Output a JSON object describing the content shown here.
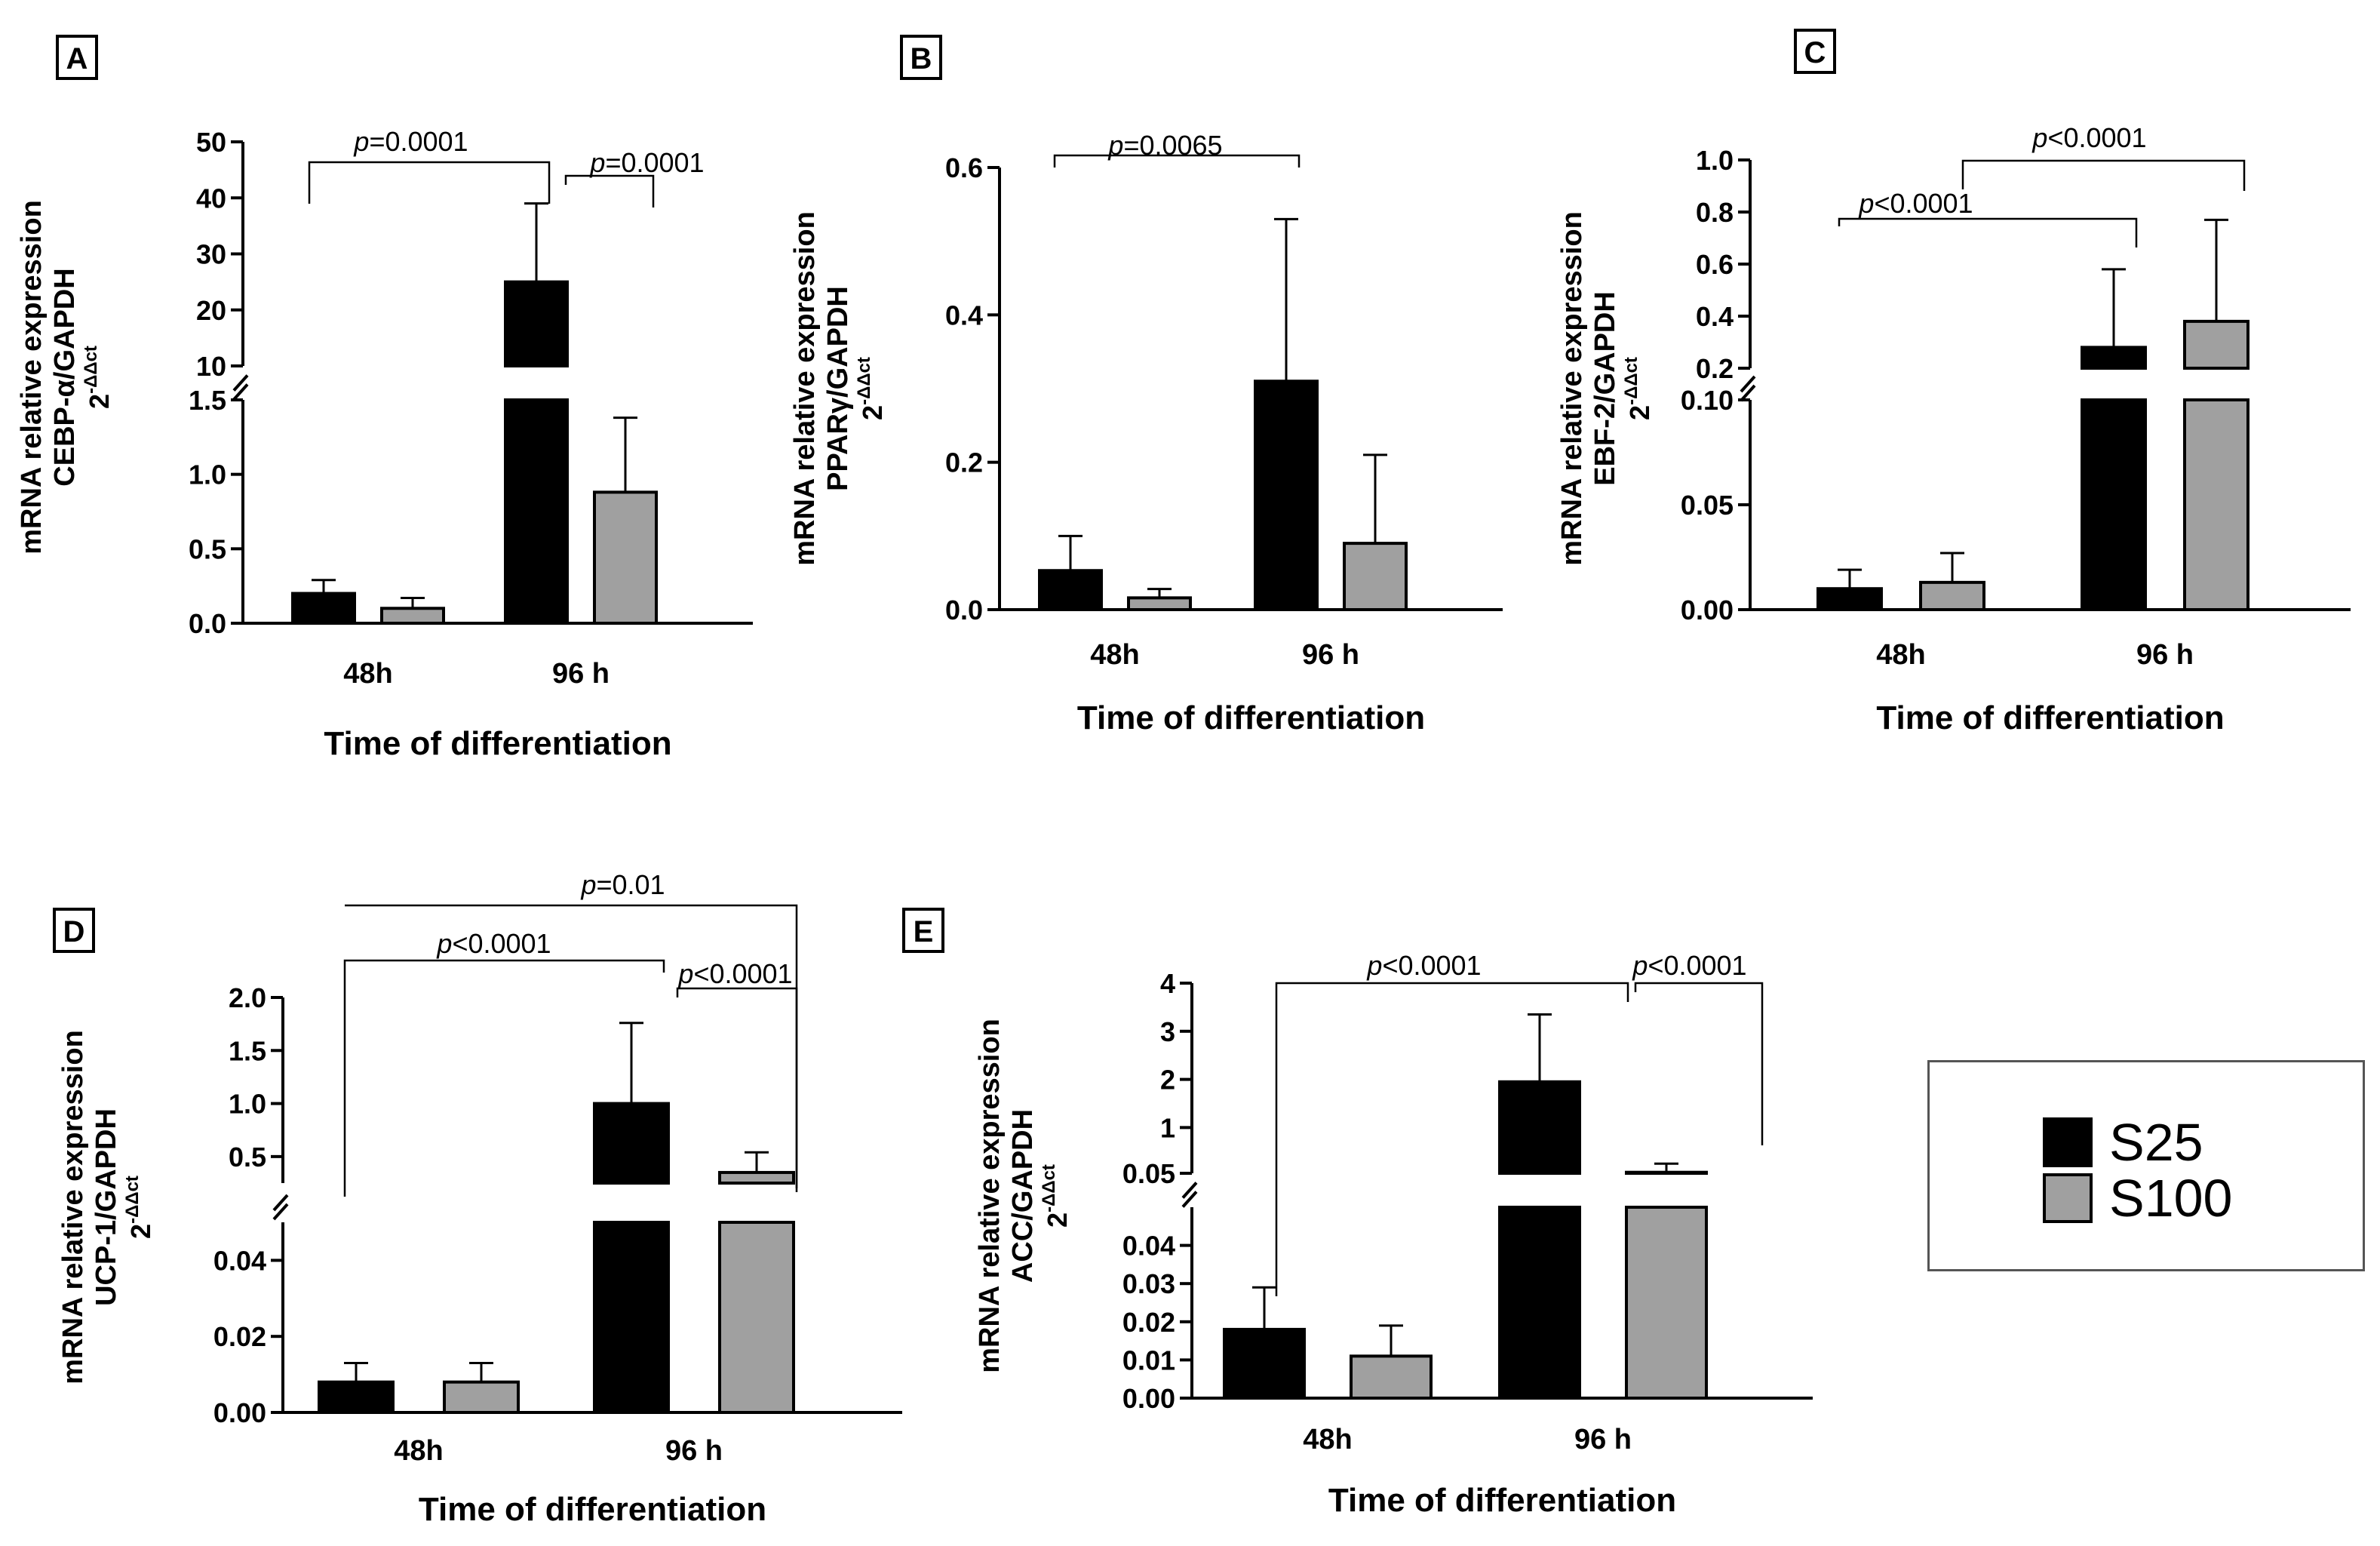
{
  "legend": {
    "items": [
      {
        "label": "S25",
        "color": "#000000"
      },
      {
        "label": "S100",
        "color": "#a0a0a0"
      }
    ]
  },
  "colors": {
    "s25": "#000000",
    "s100": "#a0a0a0",
    "line": "#000000"
  },
  "chart_data": [
    {
      "panel": "A",
      "type": "bar",
      "categories": [
        "48h",
        "96 h"
      ],
      "series": [
        {
          "name": "S25",
          "values": [
            0.2,
            25
          ],
          "errors": [
            0.09,
            14
          ]
        },
        {
          "name": "S100",
          "values": [
            0.1,
            0.88
          ],
          "errors": [
            0.07,
            0.5
          ]
        }
      ],
      "xlabel": "Time of differentiation",
      "ylabel": [
        "mRNA relative expression",
        "CEBP-α/GAPDH",
        "2",
        "-ΔΔct"
      ],
      "ylim": [
        0,
        50
      ],
      "axis_break": {
        "lower": [
          0,
          1.5
        ],
        "upper": [
          10,
          50
        ]
      },
      "yticks_lower": [
        "0.0",
        "0.5",
        "1.0",
        "1.5"
      ],
      "yticks_upper": [
        "10",
        "20",
        "30",
        "40",
        "50"
      ],
      "annotations": [
        {
          "p": "p",
          "text": "=0.0001",
          "from": "48h S25",
          "to": "96 h S25"
        },
        {
          "p": "p",
          "text": "=0.0001",
          "from": "96 h S25",
          "to": "96 h S100"
        }
      ]
    },
    {
      "panel": "B",
      "type": "bar",
      "categories": [
        "48h",
        "96 h"
      ],
      "series": [
        {
          "name": "S25",
          "values": [
            0.053,
            0.31
          ],
          "errors": [
            0.047,
            0.22
          ]
        },
        {
          "name": "S100",
          "values": [
            0.016,
            0.09
          ],
          "errors": [
            0.012,
            0.12
          ]
        }
      ],
      "xlabel": "Time of differentiation",
      "ylabel": [
        "mRNA relative expression",
        "PPARγ/GAPDH",
        "2",
        "-ΔΔct"
      ],
      "ylim": [
        0,
        0.6
      ],
      "yticks": [
        "0.0",
        "0.2",
        "0.4",
        "0.6"
      ],
      "annotations": [
        {
          "p": "p",
          "text": "=0.0065",
          "from": "48h S25",
          "to": "96 h S25"
        }
      ]
    },
    {
      "panel": "C",
      "type": "bar",
      "categories": [
        "48h",
        "96 h"
      ],
      "series": [
        {
          "name": "S25",
          "values": [
            0.01,
            0.28
          ],
          "errors": [
            0.009,
            0.3
          ]
        },
        {
          "name": "S100",
          "values": [
            0.013,
            0.38
          ],
          "errors": [
            0.014,
            0.39
          ]
        }
      ],
      "xlabel": "Time of differentiation",
      "ylabel": [
        "mRNA relative expression",
        "EBF-2/GAPDH",
        "2",
        "-ΔΔct"
      ],
      "ylim": [
        0,
        1.0
      ],
      "axis_break": {
        "lower": [
          0,
          0.1
        ],
        "upper": [
          0.2,
          1.0
        ]
      },
      "yticks_lower": [
        "0.00",
        "0.05",
        "0.10"
      ],
      "yticks_upper": [
        "0.2",
        "0.4",
        "0.6",
        "0.8",
        "1.0"
      ],
      "annotations": [
        {
          "p": "p",
          "text": "<0.0001",
          "from": "48h S25",
          "to": "96 h S25"
        },
        {
          "p": "p",
          "text": "<0.0001",
          "from": "48h group",
          "to": "96 h S100"
        }
      ]
    },
    {
      "panel": "D",
      "type": "bar",
      "categories": [
        "48h",
        "96 h"
      ],
      "series": [
        {
          "name": "S25",
          "values": [
            0.008,
            1.0
          ],
          "errors": [
            0.005,
            0.76
          ]
        },
        {
          "name": "S100",
          "values": [
            0.008,
            0.35
          ],
          "errors": [
            0.005,
            0.19
          ]
        }
      ],
      "xlabel": "Time of differentiation",
      "ylabel": [
        "mRNA relative expression",
        "UCP-1/GAPDH",
        "2",
        "-ΔΔct"
      ],
      "ylim": [
        0,
        2.0
      ],
      "axis_break": {
        "lower": [
          0,
          0.05
        ],
        "upper": [
          0.25,
          2.0
        ]
      },
      "yticks_lower": [
        "0.00",
        "0.02",
        "0.04"
      ],
      "yticks_upper": [
        "0.5",
        "1.0",
        "1.5",
        "2.0"
      ],
      "annotations": [
        {
          "p": "p",
          "text": "=0.01",
          "from": "48h group",
          "to": "96 h S100"
        },
        {
          "p": "p",
          "text": "<0.0001",
          "from": "48h S25",
          "to": "96 h S25"
        },
        {
          "p": "p",
          "text": "<0.0001",
          "from": "96 h S25",
          "to": "96 h S100"
        }
      ]
    },
    {
      "panel": "E",
      "type": "bar",
      "categories": [
        "48h",
        "96 h"
      ],
      "series": [
        {
          "name": "S25",
          "values": [
            0.018,
            1.95
          ],
          "errors": [
            0.011,
            1.4
          ]
        },
        {
          "name": "S100",
          "values": [
            0.011,
            0.07
          ],
          "errors": [
            0.008,
            0.18
          ]
        }
      ],
      "xlabel": "Time of differentiation",
      "ylabel": [
        "mRNA relative expression",
        "ACC/GAPDH",
        "2",
        "-ΔΔct"
      ],
      "ylim": [
        0,
        4
      ],
      "axis_break": {
        "lower": [
          0,
          0.05
        ],
        "upper": [
          0.05,
          4
        ]
      },
      "yticks_lower": [
        "0.00",
        "0.01",
        "0.02",
        "0.03",
        "0.04",
        "0.05"
      ],
      "yticks_upper": [
        "1",
        "2",
        "3",
        "4"
      ],
      "annotations": [
        {
          "p": "p",
          "text": "<0.0001",
          "from": "48h S25",
          "to": "96 h S25"
        },
        {
          "p": "p",
          "text": "<0.0001",
          "from": "96 h S25",
          "to": "96 h S100"
        }
      ]
    }
  ]
}
